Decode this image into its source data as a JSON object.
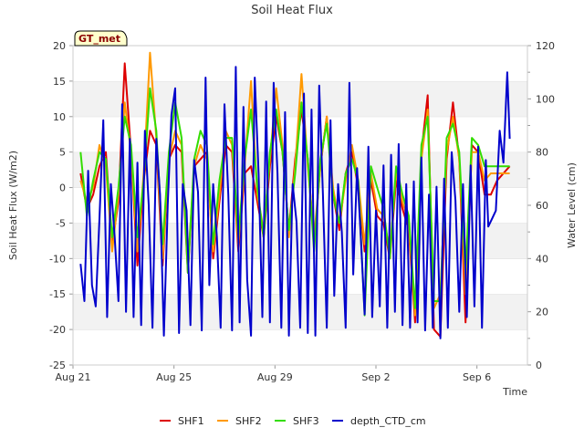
{
  "chart_data": {
    "type": "line",
    "title": "Soil Heat Flux",
    "xlabel": "Time",
    "ylabel": "Soil Heat Flux (W/m2)",
    "y2label": "Water Level (cm)",
    "badge": "GT_met",
    "x_ticks": [
      "Aug 21",
      "Aug 25",
      "Aug 29",
      "Sep 2",
      "Sep 6"
    ],
    "x_tick_days": [
      0,
      4,
      8,
      12,
      16
    ],
    "x_range_days": [
      0,
      18
    ],
    "ylim": [
      -25,
      20
    ],
    "y_ticks": [
      -25,
      -20,
      -15,
      -10,
      -5,
      0,
      5,
      10,
      15,
      20
    ],
    "y2lim": [
      0,
      120
    ],
    "y2_ticks": [
      0,
      20,
      40,
      60,
      80,
      100,
      120
    ],
    "grid": "horizontal bands",
    "legend_position": "bottom",
    "series": [
      {
        "name": "SHF1",
        "axis": "left",
        "color": "#dd0000",
        "x": [
          0.3,
          0.55,
          0.8,
          1.05,
          1.3,
          1.55,
          1.8,
          2.05,
          2.3,
          2.55,
          2.8,
          3.05,
          3.3,
          3.55,
          3.8,
          4.05,
          4.3,
          4.55,
          4.8,
          5.05,
          5.3,
          5.55,
          5.8,
          6.05,
          6.3,
          6.55,
          6.8,
          7.05,
          7.3,
          7.55,
          7.8,
          8.05,
          8.3,
          8.55,
          8.8,
          9.05,
          9.3,
          9.55,
          9.8,
          10.05,
          10.3,
          10.55,
          10.8,
          11.05,
          11.3,
          11.55,
          11.8,
          12.05,
          12.3,
          12.55,
          12.8,
          13.05,
          13.3,
          13.55,
          13.8,
          14.05,
          14.3,
          14.55,
          14.8,
          15.05,
          15.3,
          15.55,
          15.8,
          16.05,
          16.3,
          16.55,
          16.8,
          17.05,
          17.3
        ],
        "values": [
          2,
          -3,
          -1,
          3,
          5,
          -8,
          -2,
          17.5,
          5,
          -11,
          1,
          8,
          6,
          -11,
          4,
          6,
          5,
          -12,
          3,
          4,
          5,
          -10,
          -2,
          6,
          5,
          -9,
          2,
          3,
          -2,
          -7,
          3,
          10,
          5,
          -6,
          4,
          11,
          4,
          -8,
          3,
          10,
          -1,
          -6,
          2,
          5,
          0,
          -9,
          1,
          -4,
          -5,
          -10,
          1,
          -3,
          -6,
          -19,
          5,
          13,
          -20,
          -21,
          4,
          12,
          4,
          -19,
          6,
          5,
          -1,
          -1,
          1,
          2,
          3
        ]
      },
      {
        "name": "SHF2",
        "axis": "left",
        "color": "#ff9900",
        "x": [
          0.3,
          0.55,
          0.8,
          1.05,
          1.3,
          1.55,
          1.8,
          2.05,
          2.3,
          2.55,
          2.8,
          3.05,
          3.3,
          3.55,
          3.8,
          4.05,
          4.3,
          4.55,
          4.8,
          5.05,
          5.3,
          5.55,
          5.8,
          6.05,
          6.3,
          6.55,
          6.8,
          7.05,
          7.3,
          7.55,
          7.8,
          8.05,
          8.3,
          8.55,
          8.8,
          9.05,
          9.3,
          9.55,
          9.8,
          10.05,
          10.3,
          10.55,
          10.8,
          11.05,
          11.3,
          11.55,
          11.8,
          12.05,
          12.3,
          12.55,
          12.8,
          13.05,
          13.3,
          13.55,
          13.8,
          14.05,
          14.3,
          14.55,
          14.8,
          15.05,
          15.3,
          15.55,
          15.8,
          16.05,
          16.3,
          16.55,
          16.8,
          17.05,
          17.3
        ],
        "values": [
          1,
          -2,
          0,
          6,
          3,
          -9,
          -1,
          12,
          5,
          -9,
          2,
          19,
          7,
          -10,
          4,
          8,
          6,
          -11,
          3,
          6,
          4,
          -9,
          -1,
          8,
          6,
          -8,
          3,
          15,
          -1,
          -6,
          4,
          14,
          6,
          -7,
          3,
          16,
          3,
          -7,
          3,
          10,
          0,
          -5,
          1,
          6,
          1,
          -8,
          2,
          -3,
          -4,
          -9,
          2,
          -2,
          -5,
          -18,
          4,
          11,
          -17,
          -15,
          5,
          10,
          4,
          -15,
          5,
          5,
          1,
          2,
          2,
          2,
          2
        ]
      },
      {
        "name": "SHF3",
        "axis": "left",
        "color": "#33dd00",
        "x": [
          0.3,
          0.55,
          0.8,
          1.05,
          1.3,
          1.55,
          1.8,
          2.05,
          2.3,
          2.55,
          2.8,
          3.05,
          3.3,
          3.55,
          3.8,
          4.05,
          4.3,
          4.55,
          4.8,
          5.05,
          5.3,
          5.55,
          5.8,
          6.05,
          6.3,
          6.55,
          6.8,
          7.05,
          7.3,
          7.55,
          7.8,
          8.05,
          8.3,
          8.55,
          8.8,
          9.05,
          9.3,
          9.55,
          9.8,
          10.05,
          10.3,
          10.55,
          10.8,
          11.05,
          11.3,
          11.55,
          11.8,
          12.05,
          12.3,
          12.55,
          12.8,
          13.05,
          13.3,
          13.55,
          13.8,
          14.05,
          14.3,
          14.55,
          14.8,
          15.05,
          15.3,
          15.55,
          15.8,
          16.05,
          16.3,
          16.55,
          16.8,
          17.05,
          17.3
        ],
        "values": [
          5,
          -4,
          1,
          5,
          4,
          -7,
          0,
          10,
          6,
          -7,
          1,
          14,
          8,
          -8,
          5,
          12,
          7,
          -12,
          4,
          8,
          6,
          -8,
          1,
          7,
          7,
          -7,
          4,
          11,
          0,
          -7,
          5,
          11,
          5,
          -6,
          2,
          12,
          4,
          -9,
          4,
          9,
          -1,
          -5,
          2,
          4,
          1,
          -18,
          3,
          0,
          -3,
          -10,
          3,
          -1,
          -4,
          -17,
          6,
          10,
          -16,
          -16,
          7,
          9,
          5,
          -12,
          7,
          6,
          3,
          3,
          3,
          3,
          3
        ]
      },
      {
        "name": "depth_CTD_cm",
        "axis": "right",
        "color": "#0000cc",
        "x": [
          0.3,
          0.45,
          0.6,
          0.75,
          0.9,
          1.05,
          1.2,
          1.35,
          1.5,
          1.65,
          1.8,
          1.95,
          2.1,
          2.25,
          2.4,
          2.55,
          2.7,
          2.85,
          3.0,
          3.15,
          3.3,
          3.45,
          3.6,
          3.75,
          3.9,
          4.05,
          4.2,
          4.35,
          4.5,
          4.65,
          4.8,
          4.95,
          5.1,
          5.25,
          5.4,
          5.55,
          5.7,
          5.85,
          6.0,
          6.15,
          6.3,
          6.45,
          6.6,
          6.75,
          6.9,
          7.05,
          7.2,
          7.35,
          7.5,
          7.65,
          7.8,
          7.95,
          8.1,
          8.25,
          8.4,
          8.55,
          8.7,
          8.85,
          9.0,
          9.15,
          9.3,
          9.45,
          9.6,
          9.75,
          9.9,
          10.05,
          10.2,
          10.35,
          10.5,
          10.65,
          10.8,
          10.95,
          11.1,
          11.25,
          11.4,
          11.55,
          11.7,
          11.85,
          12.0,
          12.15,
          12.3,
          12.45,
          12.6,
          12.75,
          12.9,
          13.05,
          13.2,
          13.35,
          13.5,
          13.65,
          13.8,
          13.95,
          14.1,
          14.25,
          14.4,
          14.55,
          14.7,
          14.85,
          15.0,
          15.15,
          15.3,
          15.45,
          15.6,
          15.75,
          15.9,
          16.05,
          16.2,
          16.35,
          16.45,
          16.6,
          16.75,
          16.9,
          17.05,
          17.2,
          17.3
        ],
        "values": [
          38,
          24,
          73,
          30,
          22,
          55,
          92,
          18,
          68,
          48,
          24,
          98,
          20,
          85,
          18,
          76,
          15,
          88,
          60,
          14,
          85,
          64,
          11,
          60,
          94,
          104,
          12,
          68,
          58,
          15,
          77,
          65,
          13,
          108,
          30,
          68,
          48,
          14,
          98,
          64,
          13,
          112,
          16,
          97,
          32,
          11,
          108,
          72,
          18,
          99,
          16,
          106,
          72,
          14,
          95,
          11,
          68,
          54,
          14,
          102,
          12,
          96,
          11,
          105,
          64,
          14,
          92,
          26,
          68,
          50,
          14,
          106,
          34,
          74,
          48,
          19,
          82,
          18,
          58,
          22,
          75,
          14,
          79,
          20,
          83,
          15,
          68,
          14,
          69,
          16,
          78,
          13,
          64,
          14,
          67,
          10,
          70,
          14,
          80,
          62,
          20,
          68,
          18,
          75,
          22,
          82,
          14,
          77,
          52,
          55,
          58,
          88,
          76,
          110,
          85
        ]
      }
    ]
  }
}
